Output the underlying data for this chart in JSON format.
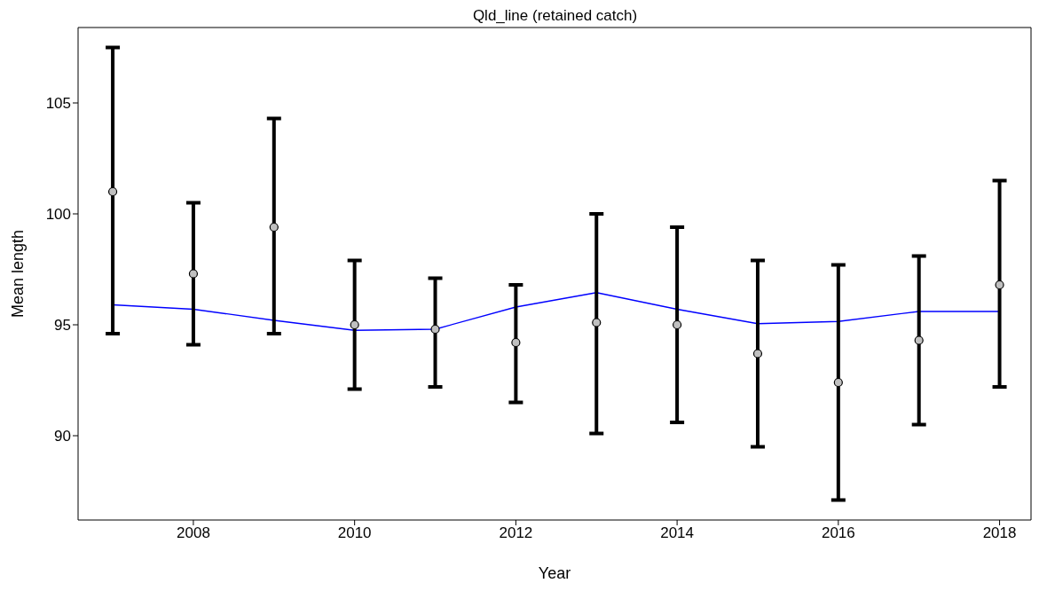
{
  "chart_data": {
    "type": "scatter",
    "title": "Qld_line (retained catch)",
    "xlabel": "Year",
    "ylabel": "Mean length",
    "x": [
      2007,
      2008,
      2009,
      2010,
      2011,
      2012,
      2013,
      2014,
      2015,
      2016,
      2017,
      2018
    ],
    "series": [
      {
        "color": "#c0c0c0",
        "marker": "circle",
        "values": [
          101.0,
          97.3,
          99.4,
          95.0,
          94.8,
          94.2,
          95.1,
          95.0,
          93.7,
          92.4,
          94.3,
          96.8
        ],
        "errors": [
          [
            94.6,
            107.5
          ],
          [
            94.1,
            100.5
          ],
          [
            94.6,
            104.3
          ],
          [
            92.1,
            97.9
          ],
          [
            92.2,
            97.1
          ],
          [
            91.5,
            96.8
          ],
          [
            90.1,
            100.0
          ],
          [
            90.6,
            99.4
          ],
          [
            89.5,
            97.9
          ],
          [
            87.1,
            97.7
          ],
          [
            90.5,
            98.1
          ],
          [
            92.2,
            101.5
          ]
        ]
      },
      {
        "type": "line",
        "color": "#0000ff",
        "marker": "none",
        "values": [
          95.9,
          95.7,
          95.2,
          94.75,
          94.8,
          95.8,
          96.45,
          95.7,
          95.05,
          95.15,
          95.6,
          95.6
        ]
      }
    ],
    "xlim": [
      2006.57,
      2018.39
    ],
    "xticks": [
      2008,
      2010,
      2012,
      2014,
      2016,
      2018
    ],
    "ylim": [
      86.2,
      108.4
    ],
    "yticks": [
      90,
      95,
      100,
      105
    ],
    "grid": false
  }
}
